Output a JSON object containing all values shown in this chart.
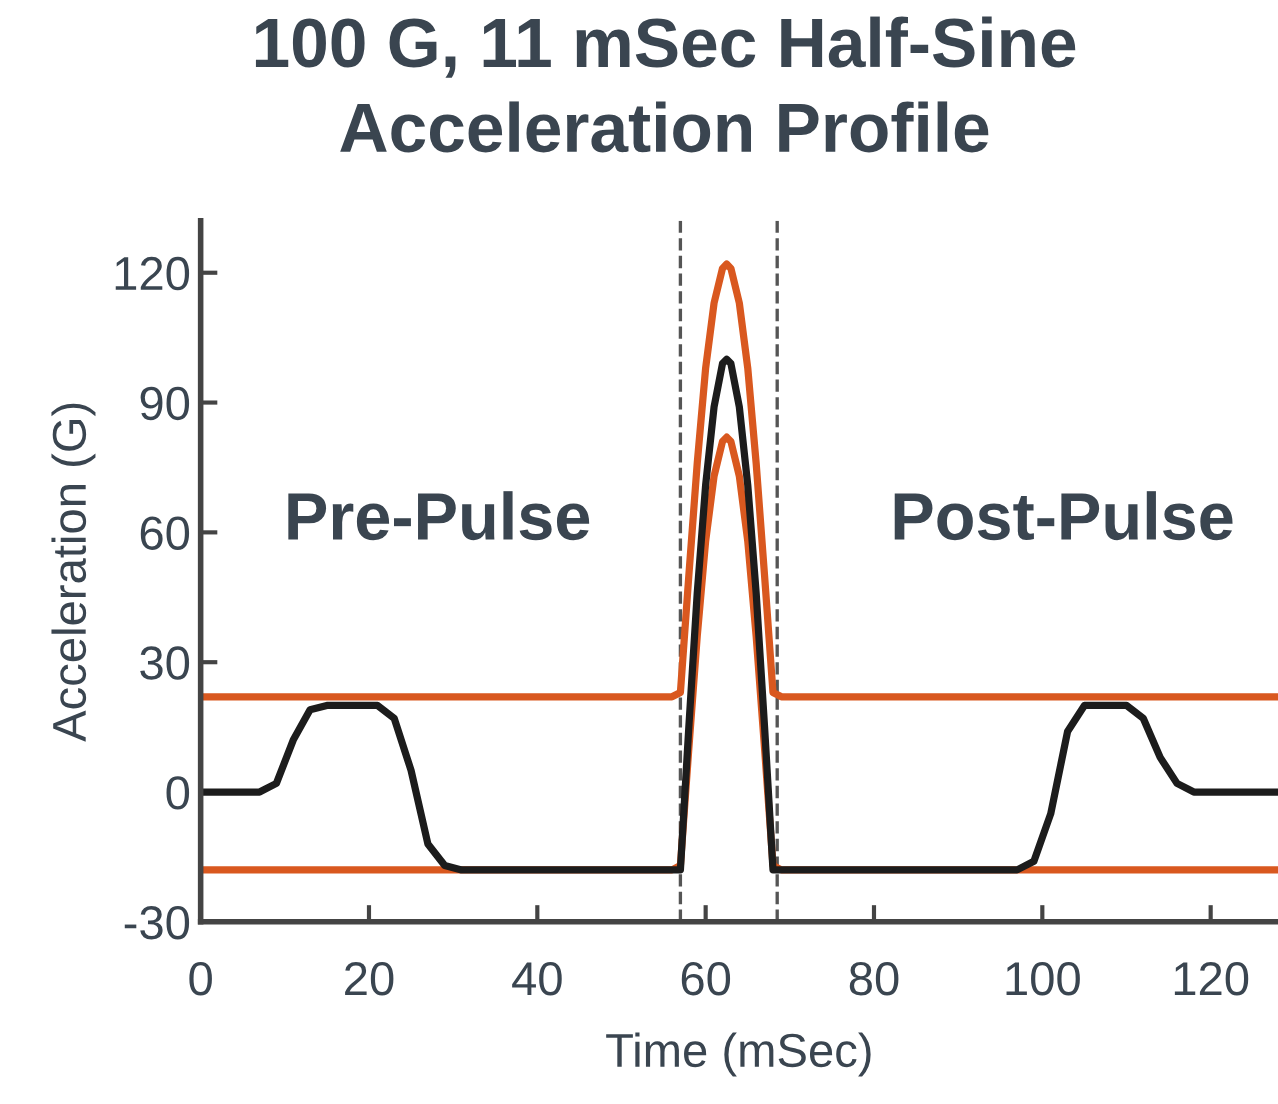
{
  "chart_data": {
    "type": "line",
    "title": "100 G, 11 mSec Half-Sine\nAcceleration Profile",
    "xlabel": "Time (mSec)",
    "ylabel": "Acceleration (G)",
    "xlim": [
      0,
      128
    ],
    "ylim": [
      -30,
      132
    ],
    "xticks": [
      0,
      20,
      40,
      60,
      80,
      100,
      120
    ],
    "yticks": [
      -30,
      0,
      30,
      60,
      90,
      120
    ],
    "grid": false,
    "legend": false,
    "marker": "none",
    "line_style": "solid",
    "series": [
      {
        "color": "#d9581f",
        "x": [
          0,
          56,
          57,
          58,
          59,
          60,
          61,
          62,
          62.5,
          63,
          64,
          65,
          66,
          67,
          68,
          69,
          128
        ],
        "values": [
          22,
          22,
          23,
          50,
          76,
          98,
          113,
          121,
          122,
          121,
          113,
          98,
          76,
          50,
          23,
          22,
          22
        ]
      },
      {
        "color": "#d9581f",
        "x": [
          0,
          56,
          57,
          58,
          59,
          60,
          61,
          62,
          62.5,
          63,
          64,
          65,
          66,
          67,
          68,
          69,
          128
        ],
        "values": [
          -18,
          -18,
          -17,
          10,
          36,
          58,
          73,
          81,
          82,
          81,
          73,
          58,
          36,
          10,
          -17,
          -18,
          -18
        ]
      },
      {
        "color": "#1c1c1c",
        "x": [
          0,
          7,
          9,
          11,
          13,
          15,
          21,
          23,
          25,
          27,
          29,
          31,
          56,
          57,
          58,
          59,
          60,
          61,
          62,
          62.5,
          63,
          64,
          65,
          66,
          67,
          68,
          97,
          99,
          101,
          103,
          105,
          110,
          112,
          114,
          116,
          118,
          128
        ],
        "values": [
          0,
          0,
          2,
          12,
          19,
          20,
          20,
          17,
          5,
          -12,
          -17,
          -18,
          -18,
          -18,
          15,
          46,
          71,
          89,
          99,
          100,
          99,
          89,
          71,
          46,
          15,
          -18,
          -18,
          -16,
          -5,
          14,
          20,
          20,
          17,
          8,
          2,
          0,
          0
        ]
      }
    ],
    "ref_lines": [
      {
        "axis": "x",
        "value": 57,
        "color": "#555555",
        "line_style": "dashed"
      },
      {
        "axis": "x",
        "value": 68.5,
        "color": "#555555",
        "line_style": "dashed"
      }
    ],
    "annotations": [
      "Pre-Pulse",
      "Post-Pulse"
    ]
  }
}
